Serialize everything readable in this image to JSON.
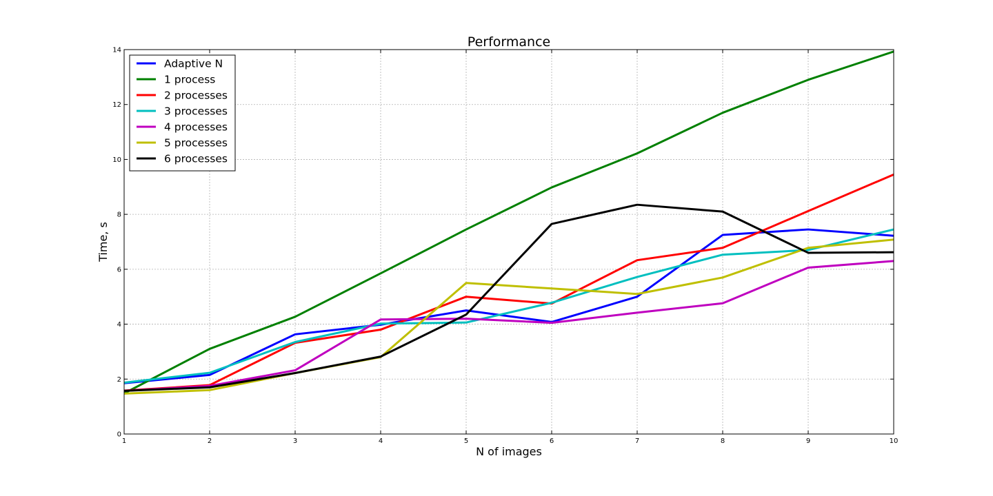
{
  "chart_data": {
    "type": "line",
    "title": "Performance",
    "xlabel": "N of images",
    "ylabel": "Time, s",
    "xlim": [
      1,
      10
    ],
    "ylim": [
      0,
      14
    ],
    "x": [
      1,
      2,
      3,
      4,
      5,
      6,
      7,
      8,
      9,
      10
    ],
    "xticks": [
      "1",
      "2",
      "3",
      "4",
      "5",
      "6",
      "7",
      "8",
      "9",
      "10"
    ],
    "yticks": [
      "0",
      "2",
      "4",
      "6",
      "8",
      "10",
      "12",
      "14"
    ],
    "grid": true,
    "legend_position": "top-left",
    "series": [
      {
        "name": "Adaptive N",
        "color": "#0000ff",
        "values": [
          1.85,
          2.15,
          3.63,
          3.98,
          4.5,
          4.08,
          5.0,
          7.25,
          7.45,
          7.22
        ]
      },
      {
        "name": "1 process",
        "color": "#008000",
        "values": [
          1.48,
          3.1,
          4.27,
          5.85,
          7.45,
          8.98,
          10.22,
          11.7,
          12.9,
          13.93
        ]
      },
      {
        "name": "2 processes",
        "color": "#ff0000",
        "values": [
          1.58,
          1.78,
          3.32,
          3.8,
          5.0,
          4.75,
          6.33,
          6.78,
          8.12,
          9.45
        ]
      },
      {
        "name": "3 processes",
        "color": "#00bfbf",
        "values": [
          1.87,
          2.23,
          3.35,
          4.02,
          4.06,
          4.78,
          5.72,
          6.53,
          6.7,
          7.45
        ]
      },
      {
        "name": "4 processes",
        "color": "#bf00bf",
        "values": [
          1.57,
          1.75,
          2.32,
          4.17,
          4.2,
          4.05,
          4.42,
          4.76,
          6.06,
          6.3
        ]
      },
      {
        "name": "5 processes",
        "color": "#bfbf00",
        "values": [
          1.47,
          1.6,
          2.22,
          2.8,
          5.5,
          5.3,
          5.1,
          5.7,
          6.78,
          7.08
        ]
      },
      {
        "name": "6 processes",
        "color": "#000000",
        "values": [
          1.57,
          1.7,
          2.22,
          2.82,
          4.35,
          7.65,
          8.35,
          8.1,
          6.6,
          6.62
        ]
      }
    ]
  }
}
